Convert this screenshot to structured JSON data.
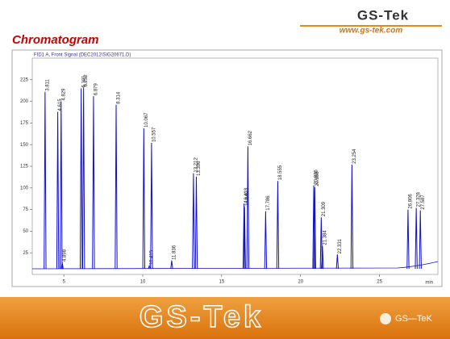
{
  "header": {
    "logo": "GS-Tek",
    "url": "www.gs-tek.com"
  },
  "title": "Chromatogram",
  "chart_data": {
    "type": "chromatogram",
    "subtitle": "FID1 A, Front Signal (DEC2012\\SIG20671.D)",
    "x_unit": "min",
    "x": [
      3.811,
      4.615,
      4.829,
      4.898,
      6.101,
      6.252,
      6.879,
      8.314,
      10.067,
      10.415,
      10.557,
      11.836,
      13.212,
      13.396,
      16.418,
      16.449,
      16.662,
      17.786,
      18.555,
      20.836,
      20.898,
      21.309,
      21.384,
      22.331,
      23.254,
      26.806,
      27.328,
      27.587
    ],
    "values": [
      211,
      188,
      200,
      14,
      215,
      216,
      206,
      196,
      169,
      10,
      152,
      16,
      117,
      113,
      82,
      78,
      148,
      73,
      108,
      103,
      101,
      66,
      33,
      23,
      127,
      75,
      77,
      74
    ],
    "color": "#1010c8",
    "xlim": [
      3,
      28.7
    ],
    "xticks": [
      5,
      10,
      15,
      20,
      25
    ],
    "ylim": [
      0,
      250
    ],
    "yticks": [
      25,
      50,
      75,
      100,
      125,
      150,
      175,
      200,
      225
    ],
    "grid": false
  },
  "footer": {
    "logo": "GS-Tek",
    "watermark": "GS—TeK"
  }
}
